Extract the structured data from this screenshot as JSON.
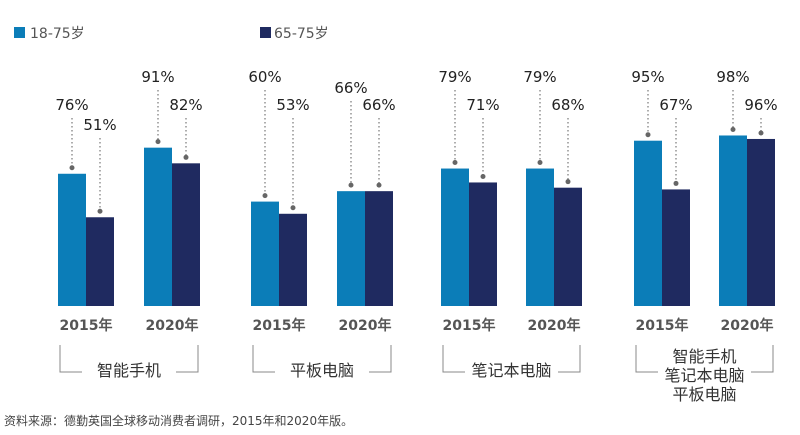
{
  "chart_data": {
    "type": "bar",
    "colors": {
      "18-75岁": "#0b7db8",
      "65-75岁": "#1f2a60"
    },
    "legend": [
      "18-75岁",
      "65-75岁"
    ],
    "legend_position": "top",
    "grid": false,
    "ylim": [
      0,
      100
    ],
    "groups": [
      {
        "category": [
          "智能手机"
        ],
        "years": [
          "2015年",
          "2020年"
        ],
        "series": {
          "18-75岁": [
            76,
            91
          ],
          "65-75岁": [
            51,
            82
          ]
        }
      },
      {
        "category": [
          "平板电脑"
        ],
        "years": [
          "2015年",
          "2020年"
        ],
        "series": {
          "18-75岁": [
            60,
            66
          ],
          "65-75岁": [
            53,
            66
          ]
        }
      },
      {
        "category": [
          "笔记本电脑"
        ],
        "years": [
          "2015年",
          "2020年"
        ],
        "series": {
          "18-75岁": [
            79,
            79
          ],
          "65-75岁": [
            71,
            68
          ]
        }
      },
      {
        "category": [
          "智能手机",
          "笔记本电脑",
          "平板电脑"
        ],
        "years": [
          "2015年",
          "2020年"
        ],
        "series": {
          "18-75岁": [
            95,
            98
          ],
          "65-75岁": [
            67,
            96
          ]
        }
      }
    ],
    "value_suffix": "%",
    "source": "资料来源：德勤英国全球移动消费者调研，2015年和2020年版。"
  }
}
